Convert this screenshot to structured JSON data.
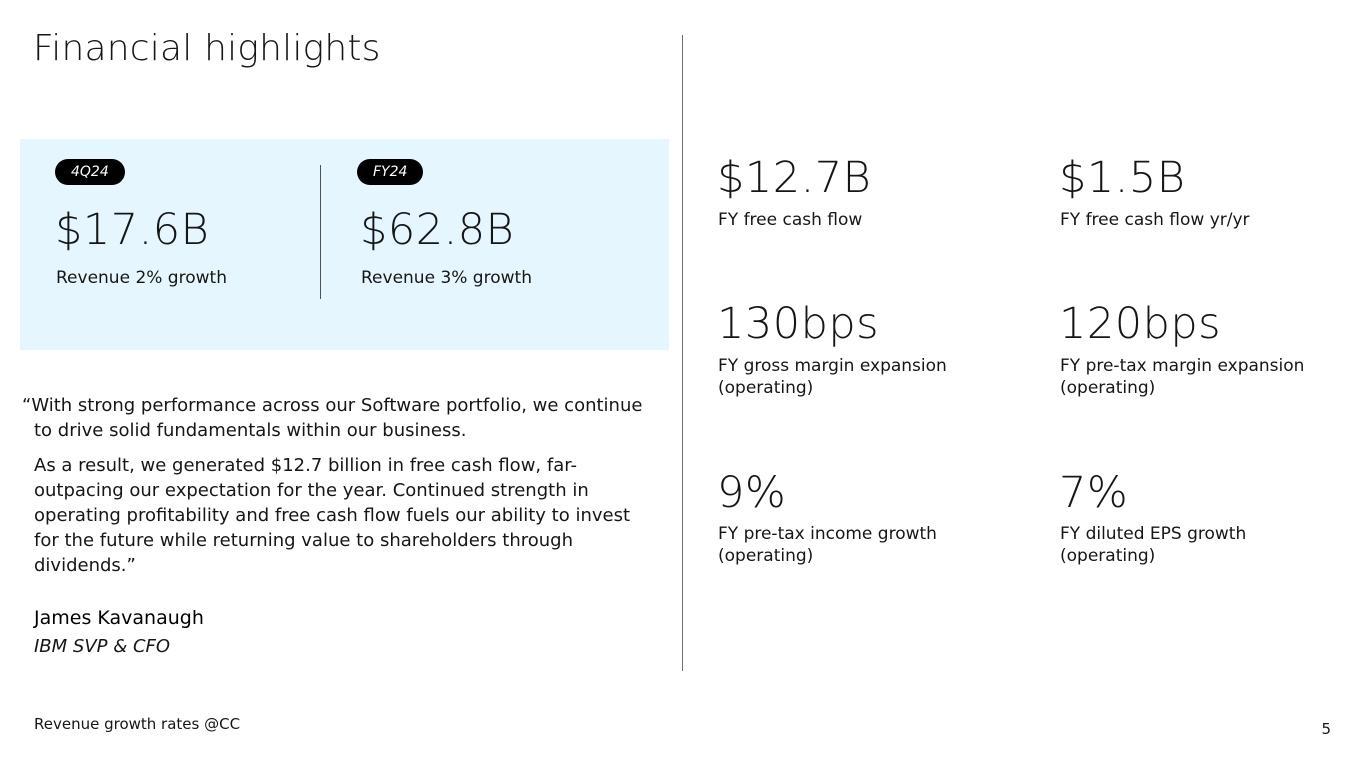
{
  "title": "Financial highlights",
  "revenue": {
    "quarter": {
      "badge": "4Q24",
      "value": "$17.6B",
      "caption": "Revenue 2% growth"
    },
    "year": {
      "badge": "FY24",
      "value": "$62.8B",
      "caption": "Revenue 3% growth"
    }
  },
  "quote": {
    "paragraph1": "“With strong performance across our Software portfolio, we continue to drive solid fundamentals within our business.",
    "paragraph2": "As a result, we generated $12.7 billion in free cash flow, far-outpacing our expectation for the year. Continued strength in operating profitability and free cash flow fuels our ability to invest for the future while returning value to shareholders through dividends.”",
    "author": "James Kavanaugh",
    "author_title": "IBM SVP & CFO"
  },
  "metrics": [
    {
      "value": "$12.7B",
      "label_line1": "FY free cash flow",
      "label_line2": ""
    },
    {
      "value": "$1.5B",
      "label_line1": "FY free cash flow yr/yr",
      "label_line2": ""
    },
    {
      "value": "130bps",
      "label_line1": "FY gross margin expansion",
      "label_line2": "(operating)"
    },
    {
      "value": "120bps",
      "label_line1": "FY pre-tax margin expansion",
      "label_line2": "(operating)"
    },
    {
      "value": "9%",
      "label_line1": "FY pre-tax income growth",
      "label_line2": "(operating)"
    },
    {
      "value": "7%",
      "label_line1": "FY diluted EPS growth",
      "label_line2": "(operating)"
    }
  ],
  "footnote": "Revenue growth rates @CC",
  "page_number": "5",
  "colors": {
    "box_background": "#e5f6ff",
    "pill_background": "#000000",
    "text": "#161616"
  }
}
